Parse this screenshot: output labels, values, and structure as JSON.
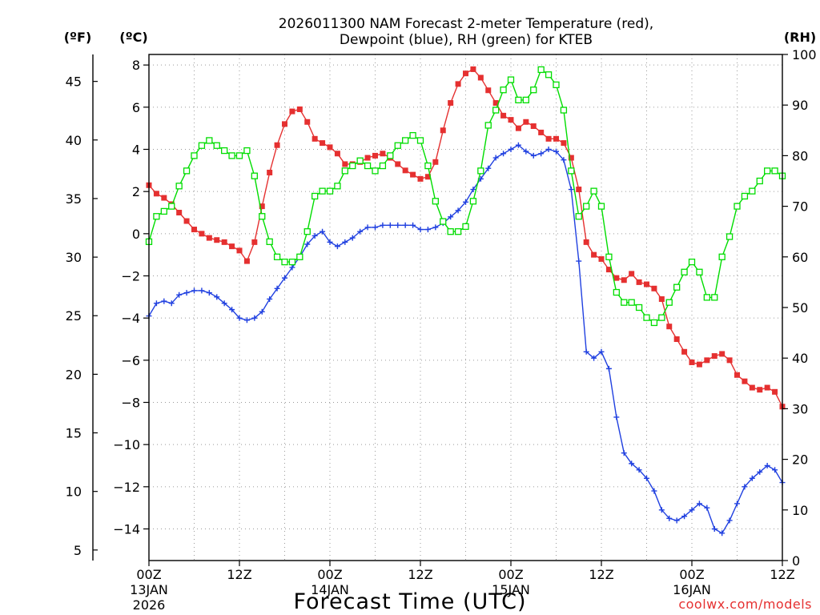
{
  "chart_data": {
    "type": "line",
    "title_line1": "2026011300 NAM Forecast 2-meter Temperature (red),",
    "title_line2": "Dewpoint (blue), RH (green) for KTEB",
    "xlabel": "Forecast Time (UTC)",
    "watermark": "coolwx.com/models",
    "unit_labels": {
      "fahrenheit": "(ºF)",
      "celsius": "(ºC)",
      "rh": "(RH)"
    },
    "colors": {
      "temperature": "#e53030",
      "dewpoint": "#2040e0",
      "rh": "#00dd00"
    },
    "celsius_axis": {
      "range": [
        -15.5,
        8.5
      ],
      "ticks": [
        8,
        6,
        4,
        2,
        0,
        -2,
        -4,
        -6,
        -8,
        -10,
        -12,
        -14
      ],
      "tick_labels": [
        "8",
        "6",
        "4",
        "2",
        "0",
        "−2",
        "−4",
        "−6",
        "−8",
        "−10",
        "−12",
        "−14"
      ]
    },
    "fahrenheit_axis": {
      "ticks": [
        45,
        40,
        35,
        30,
        25,
        20,
        15,
        10,
        5
      ],
      "tick_labels": [
        "45",
        "40",
        "35",
        "30",
        "25",
        "20",
        "15",
        "10",
        "5"
      ]
    },
    "rh_axis": {
      "range": [
        0,
        100
      ],
      "ticks": [
        100,
        90,
        80,
        70,
        60,
        50,
        40,
        30,
        20,
        10,
        0
      ],
      "tick_labels": [
        "100",
        "90",
        "80",
        "70",
        "60",
        "50",
        "40",
        "30",
        "20",
        "10",
        "0"
      ]
    },
    "x_axis": {
      "range_hours": [
        0,
        84
      ],
      "tick_hours": [
        0,
        12,
        24,
        36,
        48,
        60,
        72,
        84
      ],
      "tick_labels": [
        "00Z",
        "12Z",
        "00Z",
        "12Z",
        "00Z",
        "12Z",
        "00Z",
        "12Z"
      ],
      "date_labels": [
        {
          "hour": 0,
          "text": "13JAN"
        },
        {
          "hour": 24,
          "text": "14JAN"
        },
        {
          "hour": 48,
          "text": "15JAN"
        },
        {
          "hour": 72,
          "text": "16JAN"
        }
      ],
      "year_label": "2026"
    },
    "grid": true,
    "series": [
      {
        "name": "Temperature",
        "units": "C",
        "x_hours": [
          0,
          1,
          2,
          3,
          4,
          5,
          6,
          7,
          8,
          9,
          10,
          11,
          12,
          13,
          14,
          15,
          16,
          17,
          18,
          19,
          20,
          21,
          22,
          23,
          24,
          25,
          26,
          27,
          28,
          29,
          30,
          31,
          32,
          33,
          34,
          35,
          36,
          37,
          38,
          39,
          40,
          41,
          42,
          43,
          44,
          45,
          46,
          47,
          48,
          49,
          50,
          51,
          52,
          53,
          54,
          55,
          56,
          57,
          58,
          59,
          60,
          61,
          62,
          63,
          64,
          65,
          66,
          67,
          68,
          69,
          70,
          71,
          72,
          73,
          74,
          75,
          76,
          77,
          78,
          79,
          80,
          81,
          82,
          83,
          84
        ],
        "values": [
          2.3,
          1.9,
          1.7,
          1.4,
          1.0,
          0.6,
          0.2,
          0.0,
          -0.2,
          -0.3,
          -0.4,
          -0.6,
          -0.8,
          -1.3,
          -0.4,
          1.3,
          2.9,
          4.2,
          5.2,
          5.8,
          5.9,
          5.3,
          4.5,
          4.3,
          4.1,
          3.8,
          3.3,
          3.3,
          3.4,
          3.6,
          3.7,
          3.8,
          3.6,
          3.3,
          3.0,
          2.8,
          2.6,
          2.7,
          3.4,
          4.9,
          6.2,
          7.1,
          7.6,
          7.8,
          7.4,
          6.8,
          6.2,
          5.6,
          5.4,
          5.0,
          5.3,
          5.1,
          4.8,
          4.5,
          4.5,
          4.3,
          3.6,
          2.1,
          -0.4,
          -1.0,
          -1.2,
          -1.7,
          -2.1,
          -2.2,
          -1.9,
          -2.3,
          -2.4,
          -2.6,
          -3.1,
          -4.4,
          -5.0,
          -5.6,
          -6.1,
          -6.2,
          -6.0,
          -5.8,
          -5.7,
          -6.0,
          -6.7,
          -7.0,
          -7.3,
          -7.4,
          -7.3,
          -7.5,
          -8.2
        ]
      },
      {
        "name": "Dewpoint",
        "units": "C",
        "x_hours": [
          0,
          1,
          2,
          3,
          4,
          5,
          6,
          7,
          8,
          9,
          10,
          11,
          12,
          13,
          14,
          15,
          16,
          17,
          18,
          19,
          20,
          21,
          22,
          23,
          24,
          25,
          26,
          27,
          28,
          29,
          30,
          31,
          32,
          33,
          34,
          35,
          36,
          37,
          38,
          39,
          40,
          41,
          42,
          43,
          44,
          45,
          46,
          47,
          48,
          49,
          50,
          51,
          52,
          53,
          54,
          55,
          56,
          57,
          58,
          59,
          60,
          61,
          62,
          63,
          64,
          65,
          66,
          67,
          68,
          69,
          70,
          71,
          72,
          73,
          74,
          75,
          76,
          77,
          78,
          79,
          80,
          81,
          82,
          83,
          84
        ],
        "values": [
          -3.9,
          -3.3,
          -3.2,
          -3.3,
          -2.9,
          -2.8,
          -2.7,
          -2.7,
          -2.8,
          -3.0,
          -3.3,
          -3.6,
          -4.0,
          -4.1,
          -4.0,
          -3.7,
          -3.1,
          -2.6,
          -2.1,
          -1.6,
          -1.1,
          -0.5,
          -0.1,
          0.1,
          -0.4,
          -0.6,
          -0.4,
          -0.2,
          0.1,
          0.3,
          0.3,
          0.4,
          0.4,
          0.4,
          0.4,
          0.4,
          0.2,
          0.2,
          0.3,
          0.5,
          0.8,
          1.1,
          1.5,
          2.1,
          2.6,
          3.1,
          3.6,
          3.8,
          4.0,
          4.2,
          3.9,
          3.7,
          3.8,
          4.0,
          3.9,
          3.5,
          2.1,
          -1.3,
          -5.6,
          -5.9,
          -5.6,
          -6.4,
          -8.7,
          -10.4,
          -10.9,
          -11.2,
          -11.6,
          -12.2,
          -13.1,
          -13.5,
          -13.6,
          -13.4,
          -13.1,
          -12.8,
          -13.0,
          -14.0,
          -14.2,
          -13.6,
          -12.8,
          -12.0,
          -11.6,
          -11.3,
          -11.0,
          -11.2,
          -11.8
        ]
      },
      {
        "name": "RH",
        "units": "%",
        "x_hours": [
          0,
          1,
          2,
          3,
          4,
          5,
          6,
          7,
          8,
          9,
          10,
          11,
          12,
          13,
          14,
          15,
          16,
          17,
          18,
          19,
          20,
          21,
          22,
          23,
          24,
          25,
          26,
          27,
          28,
          29,
          30,
          31,
          32,
          33,
          34,
          35,
          36,
          37,
          38,
          39,
          40,
          41,
          42,
          43,
          44,
          45,
          46,
          47,
          48,
          49,
          50,
          51,
          52,
          53,
          54,
          55,
          56,
          57,
          58,
          59,
          60,
          61,
          62,
          63,
          64,
          65,
          66,
          67,
          68,
          69,
          70,
          71,
          72,
          73,
          74,
          75,
          76,
          77,
          78,
          79,
          80,
          81,
          82,
          83,
          84
        ],
        "values": [
          63,
          68,
          69,
          70,
          74,
          77,
          80,
          82,
          83,
          82,
          81,
          80,
          80,
          81,
          76,
          68,
          63,
          60,
          59,
          59,
          60,
          65,
          72,
          73,
          73,
          74,
          77,
          78,
          79,
          78,
          77,
          78,
          80,
          82,
          83,
          84,
          83,
          78,
          71,
          67,
          65,
          65,
          66,
          71,
          77,
          86,
          89,
          93,
          95,
          91,
          91,
          93,
          97,
          96,
          94,
          89,
          77,
          68,
          70,
          73,
          70,
          60,
          53,
          51,
          51,
          50,
          48,
          47,
          48,
          51,
          54,
          57,
          59,
          57,
          52,
          52,
          60,
          64,
          70,
          72,
          73,
          75,
          77,
          77,
          76
        ]
      }
    ]
  }
}
